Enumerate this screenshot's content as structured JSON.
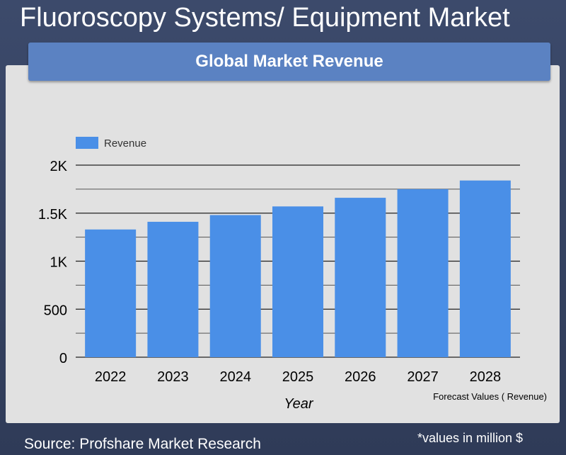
{
  "page": {
    "title": "Fluoroscopy Systems/ Equipment Market",
    "banner": "Global Market Revenue",
    "source": "Source: Profshare Market Research",
    "unit_note": "*values in million $",
    "forecast_note": "Forecast Values ( Revenue)"
  },
  "colors": {
    "bar": "#4a8fe7",
    "panel": "#e1e1e1",
    "banner": "#5b82c2",
    "background": "#36435f"
  },
  "chart_data": {
    "type": "bar",
    "title": "Global Market Revenue",
    "categories": [
      "2022",
      "2023",
      "2024",
      "2025",
      "2026",
      "2027",
      "2028"
    ],
    "series": [
      {
        "name": "Revenue",
        "values": [
          1330,
          1410,
          1480,
          1570,
          1660,
          1750,
          1840
        ]
      }
    ],
    "xlabel": "Year",
    "ylabel": "",
    "ylim": [
      0,
      2000
    ],
    "yticks": [
      0,
      500,
      1000,
      1500,
      2000
    ],
    "ytick_labels": [
      "0",
      "500",
      "1K",
      "1.5K",
      "2K"
    ],
    "grid": true,
    "legend": "top-left"
  }
}
